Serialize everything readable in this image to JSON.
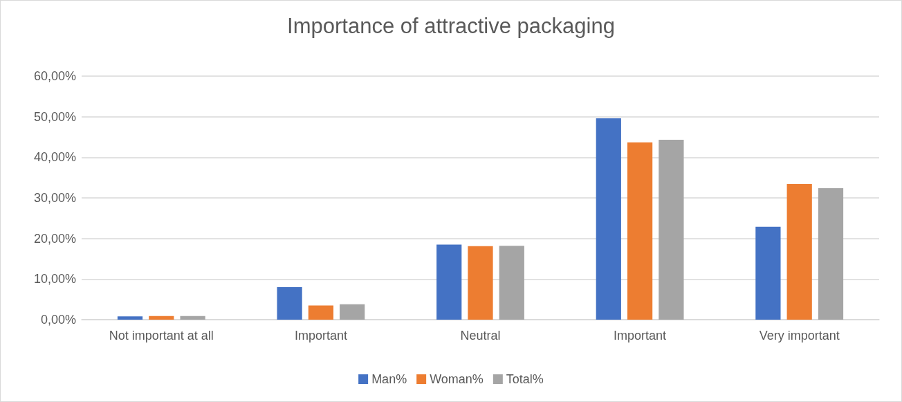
{
  "chart_data": {
    "type": "bar",
    "title": "Importance of attractive packaging",
    "categories": [
      "Not important at all",
      "Important",
      "Neutral",
      "Important",
      "Very important"
    ],
    "series": [
      {
        "name": "Man%",
        "color": "#4472c4",
        "values": [
          0.8,
          8.0,
          18.5,
          49.6,
          22.9
        ]
      },
      {
        "name": "Woman%",
        "color": "#ed7d31",
        "values": [
          0.9,
          3.5,
          18.1,
          43.7,
          33.4
        ]
      },
      {
        "name": "Total%",
        "color": "#a5a5a5",
        "values": [
          0.9,
          3.8,
          18.2,
          44.3,
          32.4
        ]
      }
    ],
    "ylim": [
      0,
      60
    ],
    "yticks": [
      {
        "value": 0,
        "label": "0,00%"
      },
      {
        "value": 10,
        "label": "10,00%"
      },
      {
        "value": 20,
        "label": "20,00%"
      },
      {
        "value": 30,
        "label": "30,00%"
      },
      {
        "value": 40,
        "label": "40,00%"
      },
      {
        "value": 50,
        "label": "50,00%"
      },
      {
        "value": 60,
        "label": "60,00%"
      }
    ],
    "grid": "y",
    "legend": "bottom"
  }
}
